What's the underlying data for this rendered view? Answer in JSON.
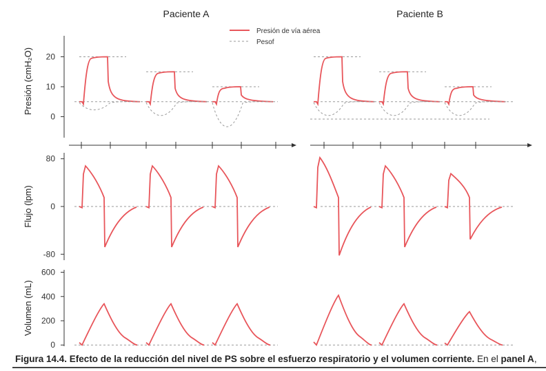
{
  "chart_data": {
    "type": "line",
    "panels": [
      {
        "key": "A",
        "title": "Paciente A"
      },
      {
        "key": "B",
        "title": "Paciente B"
      }
    ],
    "legend": [
      {
        "key": "paw",
        "name": "Presión de vía aérea",
        "color": "#e8555a",
        "dash": false
      },
      {
        "key": "pes",
        "name": "Pesof",
        "color": "#999999",
        "dash": true
      }
    ],
    "rows": [
      {
        "key": "pressure",
        "ylabel": "Presión (cmH₂O)",
        "ylim": [
          -7,
          27
        ],
        "ticks": [
          0,
          10,
          20
        ],
        "tick_labels": [
          "0",
          "10",
          "20"
        ],
        "guide_lines": [
          5
        ],
        "peep": 5,
        "breaths": {
          "A": [
            {
              "ps": 20,
              "pes_min": 2
            },
            {
              "ps": 15,
              "pes_min": -0.5
            },
            {
              "ps": 10,
              "pes_min": -5.5
            }
          ],
          "B": [
            {
              "ps": 20,
              "pes_min": -0.5
            },
            {
              "ps": 15,
              "pes_min": -0.5
            },
            {
              "ps": 10,
              "pes_min": -0.5
            }
          ]
        },
        "extra_guides": {
          "B": [
            -0.8
          ]
        }
      },
      {
        "key": "flow",
        "ylabel": "Flujo (lpm)",
        "ylim": [
          -90,
          90
        ],
        "ticks": [
          -80,
          0,
          80
        ],
        "tick_labels": [
          "-80",
          "0",
          "80"
        ],
        "guide_lines": [
          0
        ],
        "breaths": {
          "A": [
            {
              "peak": 68,
              "end_insp": 15,
              "trough": -68
            },
            {
              "peak": 68,
              "end_insp": 15,
              "trough": -68
            },
            {
              "peak": 68,
              "end_insp": 15,
              "trough": -68
            }
          ],
          "B": [
            {
              "peak": 82,
              "end_insp": 15,
              "trough": -82
            },
            {
              "peak": 68,
              "end_insp": 15,
              "trough": -68
            },
            {
              "peak": 55,
              "end_insp": 15,
              "trough": -55
            }
          ]
        }
      },
      {
        "key": "volume",
        "ylabel": "Volumen (mL)",
        "ylim": [
          -10,
          620
        ],
        "ticks": [
          0,
          200,
          400,
          600
        ],
        "tick_labels": [
          "0",
          "200",
          "400",
          "600"
        ],
        "guide_lines": [
          0
        ],
        "breaths": {
          "A": [
            {
              "vt": 340
            },
            {
              "vt": 340
            },
            {
              "vt": 340
            }
          ],
          "B": [
            {
              "vt": 410
            },
            {
              "vt": 340
            },
            {
              "vt": 275
            }
          ]
        }
      }
    ]
  },
  "caption": {
    "label": "Figura 14.4.",
    "text": "Efecto de la reducción del nivel de PS sobre el esfuerzo respiratorio y el volumen corriente.",
    "tail_prefix": "En el",
    "tail_bold": "panel A",
    "tail_suffix": ","
  }
}
